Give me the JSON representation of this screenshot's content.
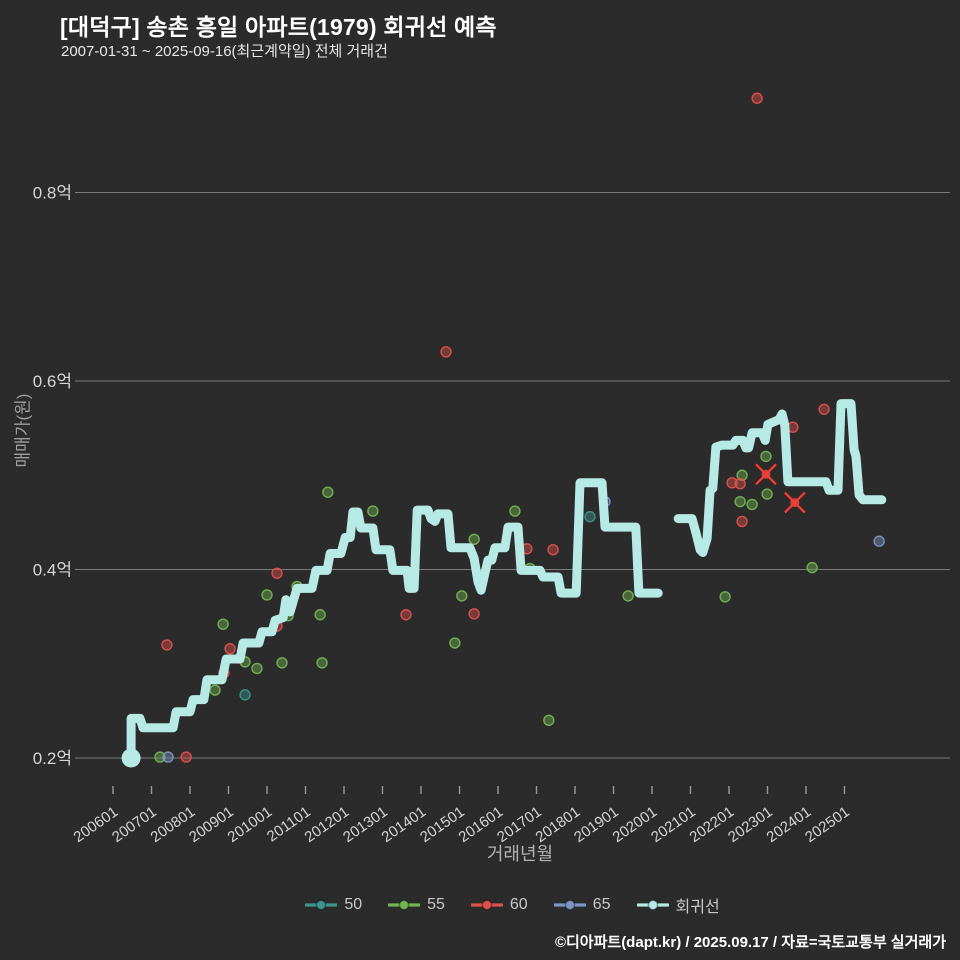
{
  "header": {
    "title": "[대덕구] 송촌 흥일 아파트(1979) 회귀선 예측",
    "subtitle": "2007-01-31 ~ 2025-09-16(최근계약일) 전체 거래건"
  },
  "footer": {
    "credit": "©디아파트(dapt.kr) / 2025.09.17 / 자료=국토교통부 실거래가"
  },
  "colors": {
    "background": "#2b2b2b",
    "grid": "#8a8a8a",
    "tick": "#9a9a9a",
    "tick_label": "#d6d6d6",
    "axis_title": "#a8a8a8",
    "series_50": "#3d958d",
    "series_55": "#74b553",
    "series_60": "#e0514e",
    "series_65": "#7e95c6",
    "regression": "#b7eae5",
    "cancel_x": "#ff3b30"
  },
  "chart_data": {
    "type": "scatter",
    "title": "[대덕구] 송촌 흥일 아파트(1979) 회귀선 예측",
    "xlabel": "거래년월",
    "ylabel": "매매가(원)",
    "grid": true,
    "legend_position": "bottom-center",
    "xlim": [
      2005.0,
      2026.7
    ],
    "ylim_eok": [
      0.13,
      0.95
    ],
    "x_ticks": [
      "200601",
      "200701",
      "200801",
      "200901",
      "201001",
      "201101",
      "201201",
      "201301",
      "201401",
      "201501",
      "201601",
      "201701",
      "201801",
      "201901",
      "202001",
      "202101",
      "202201",
      "202301",
      "202401",
      "202501"
    ],
    "y_ticks": [
      {
        "value": 0.2,
        "label": "0.2억"
      },
      {
        "value": 0.4,
        "label": "0.4억"
      },
      {
        "value": 0.6,
        "label": "0.6억"
      },
      {
        "value": 0.8,
        "label": "0.8억"
      }
    ],
    "legend": [
      {
        "name": "50",
        "color": "#3d958d"
      },
      {
        "name": "55",
        "color": "#74b553"
      },
      {
        "name": "60",
        "color": "#e0514e"
      },
      {
        "name": "65",
        "color": "#7e95c6"
      },
      {
        "name": "회귀선",
        "color": "#b7eae5"
      }
    ],
    "series": [
      {
        "name": "50",
        "kind": "scatter",
        "color": "#3d958d",
        "points": [
          [
            2009.43,
            0.267
          ],
          [
            2018.39,
            0.456
          ]
        ]
      },
      {
        "name": "55",
        "kind": "scatter",
        "color": "#74b553",
        "points": [
          [
            2007.22,
            0.201
          ],
          [
            2008.65,
            0.272
          ],
          [
            2008.86,
            0.342
          ],
          [
            2009.43,
            0.302
          ],
          [
            2009.74,
            0.295
          ],
          [
            2010.0,
            0.373
          ],
          [
            2010.39,
            0.301
          ],
          [
            2010.55,
            0.351
          ],
          [
            2010.78,
            0.382
          ],
          [
            2011.38,
            0.352
          ],
          [
            2011.43,
            0.301
          ],
          [
            2011.58,
            0.482
          ],
          [
            2012.75,
            0.462
          ],
          [
            2014.88,
            0.322
          ],
          [
            2015.06,
            0.372
          ],
          [
            2015.38,
            0.432
          ],
          [
            2016.44,
            0.462
          ],
          [
            2016.83,
            0.401
          ],
          [
            2017.32,
            0.24
          ],
          [
            2019.38,
            0.372
          ],
          [
            2021.9,
            0.371
          ],
          [
            2022.29,
            0.472
          ],
          [
            2022.6,
            0.469
          ],
          [
            2022.99,
            0.48
          ],
          [
            2022.96,
            0.52
          ],
          [
            2022.34,
            0.5
          ],
          [
            2024.16,
            0.402
          ]
        ]
      },
      {
        "name": "60",
        "kind": "scatter",
        "color": "#e0514e",
        "points": [
          [
            2007.9,
            0.201
          ],
          [
            2007.4,
            0.32
          ],
          [
            2008.88,
            0.29
          ],
          [
            2009.04,
            0.316
          ],
          [
            2010.26,
            0.396
          ],
          [
            2010.26,
            0.34
          ],
          [
            2013.61,
            0.352
          ],
          [
            2014.65,
            0.631
          ],
          [
            2015.38,
            0.353
          ],
          [
            2016.75,
            0.422
          ],
          [
            2017.43,
            0.421
          ],
          [
            2022.08,
            0.492
          ],
          [
            2022.29,
            0.491
          ],
          [
            2022.34,
            0.451
          ],
          [
            2022.73,
            0.9
          ],
          [
            2023.66,
            0.551
          ],
          [
            2024.47,
            0.57
          ]
        ]
      },
      {
        "name": "60-cancelled",
        "kind": "scatter-x",
        "color": "#e0514e",
        "points": [
          [
            2022.96,
            0.501
          ],
          [
            2023.71,
            0.471
          ]
        ]
      },
      {
        "name": "65",
        "kind": "scatter",
        "color": "#7e95c6",
        "points": [
          [
            2007.43,
            0.201
          ],
          [
            2018.78,
            0.472
          ],
          [
            2025.9,
            0.43
          ]
        ]
      },
      {
        "name": "회귀선",
        "kind": "line",
        "color": "#b7eae5",
        "segments": [
          [
            [
              2006.47,
              0.2
            ],
            [
              2006.47,
              0.242
            ],
            [
              2006.7,
              0.242
            ],
            [
              2006.78,
              0.232
            ],
            [
              2007.56,
              0.232
            ],
            [
              2007.64,
              0.249
            ],
            [
              2008.0,
              0.249
            ],
            [
              2008.08,
              0.262
            ],
            [
              2008.36,
              0.262
            ],
            [
              2008.44,
              0.283
            ],
            [
              2008.83,
              0.283
            ],
            [
              2008.94,
              0.305
            ],
            [
              2009.3,
              0.305
            ],
            [
              2009.38,
              0.322
            ],
            [
              2009.79,
              0.322
            ],
            [
              2009.87,
              0.334
            ],
            [
              2010.13,
              0.334
            ],
            [
              2010.21,
              0.346
            ],
            [
              2010.42,
              0.349
            ],
            [
              2010.49,
              0.368
            ],
            [
              2010.6,
              0.355
            ],
            [
              2010.78,
              0.38
            ],
            [
              2011.17,
              0.38
            ],
            [
              2011.27,
              0.399
            ],
            [
              2011.56,
              0.399
            ],
            [
              2011.64,
              0.417
            ],
            [
              2011.92,
              0.417
            ],
            [
              2012.03,
              0.434
            ],
            [
              2012.16,
              0.434
            ],
            [
              2012.23,
              0.461
            ],
            [
              2012.36,
              0.461
            ],
            [
              2012.44,
              0.444
            ],
            [
              2012.75,
              0.444
            ],
            [
              2012.83,
              0.421
            ],
            [
              2013.19,
              0.421
            ],
            [
              2013.27,
              0.399
            ],
            [
              2013.64,
              0.399
            ],
            [
              2013.69,
              0.38
            ],
            [
              2013.82,
              0.38
            ],
            [
              2013.9,
              0.463
            ],
            [
              2014.18,
              0.463
            ],
            [
              2014.26,
              0.454
            ],
            [
              2014.36,
              0.451
            ],
            [
              2014.44,
              0.459
            ],
            [
              2014.7,
              0.459
            ],
            [
              2014.78,
              0.423
            ],
            [
              2015.27,
              0.423
            ],
            [
              2015.38,
              0.412
            ],
            [
              2015.48,
              0.387
            ],
            [
              2015.56,
              0.378
            ],
            [
              2015.66,
              0.396
            ],
            [
              2015.74,
              0.41
            ],
            [
              2015.84,
              0.41
            ],
            [
              2015.92,
              0.423
            ],
            [
              2016.18,
              0.423
            ],
            [
              2016.26,
              0.445
            ],
            [
              2016.52,
              0.445
            ],
            [
              2016.6,
              0.399
            ],
            [
              2017.09,
              0.399
            ],
            [
              2017.17,
              0.392
            ],
            [
              2017.56,
              0.392
            ],
            [
              2017.64,
              0.375
            ],
            [
              2018.03,
              0.375
            ],
            [
              2018.13,
              0.492
            ],
            [
              2018.7,
              0.492
            ],
            [
              2018.78,
              0.445
            ],
            [
              2019.58,
              0.445
            ],
            [
              2019.66,
              0.375
            ],
            [
              2020.16,
              0.375
            ]
          ],
          [
            [
              2020.68,
              0.454
            ],
            [
              2021.04,
              0.454
            ],
            [
              2021.14,
              0.439
            ],
            [
              2021.25,
              0.421
            ],
            [
              2021.32,
              0.418
            ],
            [
              2021.43,
              0.433
            ],
            [
              2021.51,
              0.484
            ],
            [
              2021.58,
              0.486
            ],
            [
              2021.66,
              0.53
            ],
            [
              2021.82,
              0.532
            ],
            [
              2022.1,
              0.532
            ],
            [
              2022.18,
              0.537
            ],
            [
              2022.36,
              0.537
            ],
            [
              2022.44,
              0.529
            ],
            [
              2022.51,
              0.529
            ],
            [
              2022.6,
              0.545
            ],
            [
              2022.86,
              0.545
            ],
            [
              2022.94,
              0.537
            ],
            [
              2023.01,
              0.554
            ],
            [
              2023.3,
              0.559
            ],
            [
              2023.38,
              0.565
            ],
            [
              2023.45,
              0.553
            ],
            [
              2023.53,
              0.493
            ],
            [
              2024.52,
              0.493
            ],
            [
              2024.6,
              0.484
            ],
            [
              2024.83,
              0.484
            ],
            [
              2024.91,
              0.576
            ],
            [
              2025.17,
              0.576
            ],
            [
              2025.25,
              0.527
            ],
            [
              2025.3,
              0.52
            ],
            [
              2025.38,
              0.479
            ],
            [
              2025.48,
              0.474
            ],
            [
              2025.97,
              0.474
            ]
          ]
        ]
      }
    ]
  }
}
